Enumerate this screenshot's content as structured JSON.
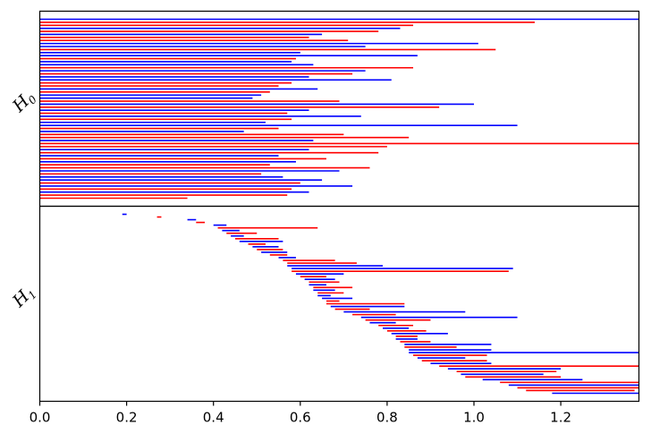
{
  "chart_data": {
    "type": "barcode",
    "xlim": [
      0.0,
      1.38
    ],
    "xticks": [
      0.0,
      0.2,
      0.4,
      0.6,
      0.8,
      1.0,
      1.2
    ],
    "xtick_labels": [
      "0.0",
      "0.2",
      "0.4",
      "0.6",
      "0.8",
      "1.0",
      "1.2"
    ],
    "grid": false,
    "legend": "none",
    "series_colors": {
      "a": "#0000ff",
      "b": "#ff0000"
    },
    "panels": [
      {
        "label": "H",
        "label_sub": "0",
        "bars": [
          {
            "birth": 0,
            "death": 1.38,
            "color": "a"
          },
          {
            "birth": 0,
            "death": 1.14,
            "color": "b"
          },
          {
            "birth": 0,
            "death": 0.86,
            "color": "b"
          },
          {
            "birth": 0,
            "death": 0.83,
            "color": "a"
          },
          {
            "birth": 0,
            "death": 0.78,
            "color": "b"
          },
          {
            "birth": 0,
            "death": 0.65,
            "color": "a"
          },
          {
            "birth": 0,
            "death": 0.62,
            "color": "b"
          },
          {
            "birth": 0,
            "death": 0.71,
            "color": "b"
          },
          {
            "birth": 0,
            "death": 1.01,
            "color": "a"
          },
          {
            "birth": 0,
            "death": 0.75,
            "color": "a"
          },
          {
            "birth": 0,
            "death": 1.05,
            "color": "b"
          },
          {
            "birth": 0,
            "death": 0.6,
            "color": "a"
          },
          {
            "birth": 0,
            "death": 0.87,
            "color": "a"
          },
          {
            "birth": 0,
            "death": 0.59,
            "color": "b"
          },
          {
            "birth": 0,
            "death": 0.58,
            "color": "a"
          },
          {
            "birth": 0,
            "death": 0.63,
            "color": "a"
          },
          {
            "birth": 0,
            "death": 0.86,
            "color": "b"
          },
          {
            "birth": 0,
            "death": 0.75,
            "color": "a"
          },
          {
            "birth": 0,
            "death": 0.72,
            "color": "b"
          },
          {
            "birth": 0,
            "death": 0.62,
            "color": "a"
          },
          {
            "birth": 0,
            "death": 0.81,
            "color": "a"
          },
          {
            "birth": 0,
            "death": 0.58,
            "color": "b"
          },
          {
            "birth": 0,
            "death": 0.55,
            "color": "b"
          },
          {
            "birth": 0,
            "death": 0.64,
            "color": "a"
          },
          {
            "birth": 0,
            "death": 0.53,
            "color": "b"
          },
          {
            "birth": 0,
            "death": 0.51,
            "color": "a"
          },
          {
            "birth": 0,
            "death": 0.49,
            "color": "a"
          },
          {
            "birth": 0,
            "death": 0.69,
            "color": "b"
          },
          {
            "birth": 0,
            "death": 1.0,
            "color": "a"
          },
          {
            "birth": 0,
            "death": 0.92,
            "color": "b"
          },
          {
            "birth": 0,
            "death": 0.62,
            "color": "a"
          },
          {
            "birth": 0,
            "death": 0.57,
            "color": "b"
          },
          {
            "birth": 0,
            "death": 0.74,
            "color": "a"
          },
          {
            "birth": 0,
            "death": 0.58,
            "color": "b"
          },
          {
            "birth": 0,
            "death": 0.52,
            "color": "a"
          },
          {
            "birth": 0,
            "death": 1.1,
            "color": "a"
          },
          {
            "birth": 0,
            "death": 0.55,
            "color": "b"
          },
          {
            "birth": 0,
            "death": 0.47,
            "color": "a"
          },
          {
            "birth": 0,
            "death": 0.7,
            "color": "b"
          },
          {
            "birth": 0,
            "death": 0.85,
            "color": "b"
          },
          {
            "birth": 0,
            "death": 0.63,
            "color": "a"
          },
          {
            "birth": 0,
            "death": 1.38,
            "color": "b"
          },
          {
            "birth": 0,
            "death": 0.8,
            "color": "b"
          },
          {
            "birth": 0,
            "death": 0.62,
            "color": "a"
          },
          {
            "birth": 0,
            "death": 0.78,
            "color": "b"
          },
          {
            "birth": 0,
            "death": 0.55,
            "color": "a"
          },
          {
            "birth": 0,
            "death": 0.66,
            "color": "b"
          },
          {
            "birth": 0,
            "death": 0.59,
            "color": "a"
          },
          {
            "birth": 0,
            "death": 0.53,
            "color": "b"
          },
          {
            "birth": 0,
            "death": 0.76,
            "color": "b"
          },
          {
            "birth": 0,
            "death": 0.69,
            "color": "a"
          },
          {
            "birth": 0,
            "death": 0.51,
            "color": "b"
          },
          {
            "birth": 0,
            "death": 0.56,
            "color": "a"
          },
          {
            "birth": 0,
            "death": 0.65,
            "color": "a"
          },
          {
            "birth": 0,
            "death": 0.6,
            "color": "b"
          },
          {
            "birth": 0,
            "death": 0.72,
            "color": "a"
          },
          {
            "birth": 0,
            "death": 0.58,
            "color": "b"
          },
          {
            "birth": 0,
            "death": 0.62,
            "color": "a"
          },
          {
            "birth": 0,
            "death": 0.57,
            "color": "b"
          },
          {
            "birth": 0,
            "death": 0.34,
            "color": "b"
          }
        ]
      },
      {
        "label": "H",
        "label_sub": "1",
        "bars": [
          {
            "birth": 0.19,
            "death": 0.2,
            "color": "a"
          },
          {
            "birth": 0.27,
            "death": 0.28,
            "color": "b"
          },
          {
            "birth": 0.34,
            "death": 0.36,
            "color": "a"
          },
          {
            "birth": 0.36,
            "death": 0.38,
            "color": "b"
          },
          {
            "birth": 0.4,
            "death": 0.43,
            "color": "a"
          },
          {
            "birth": 0.41,
            "death": 0.64,
            "color": "b"
          },
          {
            "birth": 0.42,
            "death": 0.46,
            "color": "a"
          },
          {
            "birth": 0.43,
            "death": 0.5,
            "color": "b"
          },
          {
            "birth": 0.44,
            "death": 0.47,
            "color": "a"
          },
          {
            "birth": 0.45,
            "death": 0.55,
            "color": "b"
          },
          {
            "birth": 0.46,
            "death": 0.56,
            "color": "a"
          },
          {
            "birth": 0.48,
            "death": 0.52,
            "color": "b"
          },
          {
            "birth": 0.49,
            "death": 0.55,
            "color": "a"
          },
          {
            "birth": 0.5,
            "death": 0.56,
            "color": "b"
          },
          {
            "birth": 0.51,
            "death": 0.57,
            "color": "a"
          },
          {
            "birth": 0.53,
            "death": 0.57,
            "color": "b"
          },
          {
            "birth": 0.55,
            "death": 0.59,
            "color": "a"
          },
          {
            "birth": 0.56,
            "death": 0.68,
            "color": "b"
          },
          {
            "birth": 0.57,
            "death": 0.73,
            "color": "b"
          },
          {
            "birth": 0.57,
            "death": 0.79,
            "color": "a"
          },
          {
            "birth": 0.58,
            "death": 1.09,
            "color": "a"
          },
          {
            "birth": 0.58,
            "death": 1.08,
            "color": "b"
          },
          {
            "birth": 0.59,
            "death": 0.7,
            "color": "a"
          },
          {
            "birth": 0.6,
            "death": 0.66,
            "color": "b"
          },
          {
            "birth": 0.61,
            "death": 0.68,
            "color": "a"
          },
          {
            "birth": 0.62,
            "death": 0.69,
            "color": "b"
          },
          {
            "birth": 0.62,
            "death": 0.66,
            "color": "a"
          },
          {
            "birth": 0.63,
            "death": 0.72,
            "color": "b"
          },
          {
            "birth": 0.63,
            "death": 0.68,
            "color": "a"
          },
          {
            "birth": 0.64,
            "death": 0.7,
            "color": "b"
          },
          {
            "birth": 0.64,
            "death": 0.67,
            "color": "a"
          },
          {
            "birth": 0.65,
            "death": 0.72,
            "color": "a"
          },
          {
            "birth": 0.66,
            "death": 0.69,
            "color": "b"
          },
          {
            "birth": 0.66,
            "death": 0.84,
            "color": "b"
          },
          {
            "birth": 0.67,
            "death": 0.84,
            "color": "a"
          },
          {
            "birth": 0.68,
            "death": 0.76,
            "color": "b"
          },
          {
            "birth": 0.7,
            "death": 0.98,
            "color": "a"
          },
          {
            "birth": 0.72,
            "death": 0.82,
            "color": "b"
          },
          {
            "birth": 0.74,
            "death": 1.1,
            "color": "a"
          },
          {
            "birth": 0.75,
            "death": 0.9,
            "color": "b"
          },
          {
            "birth": 0.76,
            "death": 0.82,
            "color": "a"
          },
          {
            "birth": 0.78,
            "death": 0.86,
            "color": "b"
          },
          {
            "birth": 0.79,
            "death": 0.85,
            "color": "a"
          },
          {
            "birth": 0.8,
            "death": 0.89,
            "color": "b"
          },
          {
            "birth": 0.81,
            "death": 0.94,
            "color": "a"
          },
          {
            "birth": 0.82,
            "death": 0.87,
            "color": "b"
          },
          {
            "birth": 0.82,
            "death": 0.87,
            "color": "a"
          },
          {
            "birth": 0.83,
            "death": 0.9,
            "color": "b"
          },
          {
            "birth": 0.84,
            "death": 1.04,
            "color": "a"
          },
          {
            "birth": 0.84,
            "death": 0.96,
            "color": "b"
          },
          {
            "birth": 0.85,
            "death": 1.04,
            "color": "a"
          },
          {
            "birth": 0.85,
            "death": 1.38,
            "color": "a"
          },
          {
            "birth": 0.86,
            "death": 1.03,
            "color": "b"
          },
          {
            "birth": 0.87,
            "death": 0.98,
            "color": "a"
          },
          {
            "birth": 0.88,
            "death": 1.03,
            "color": "b"
          },
          {
            "birth": 0.9,
            "death": 1.04,
            "color": "a"
          },
          {
            "birth": 0.92,
            "death": 1.38,
            "color": "b"
          },
          {
            "birth": 0.94,
            "death": 1.2,
            "color": "a"
          },
          {
            "birth": 0.96,
            "death": 1.19,
            "color": "b"
          },
          {
            "birth": 0.97,
            "death": 1.16,
            "color": "a"
          },
          {
            "birth": 0.98,
            "death": 1.2,
            "color": "b"
          },
          {
            "birth": 1.02,
            "death": 1.25,
            "color": "a"
          },
          {
            "birth": 1.06,
            "death": 1.38,
            "color": "b"
          },
          {
            "birth": 1.08,
            "death": 1.38,
            "color": "a"
          },
          {
            "birth": 1.1,
            "death": 1.38,
            "color": "b"
          },
          {
            "birth": 1.12,
            "death": 1.37,
            "color": "b"
          },
          {
            "birth": 1.18,
            "death": 1.38,
            "color": "a"
          }
        ]
      }
    ]
  }
}
